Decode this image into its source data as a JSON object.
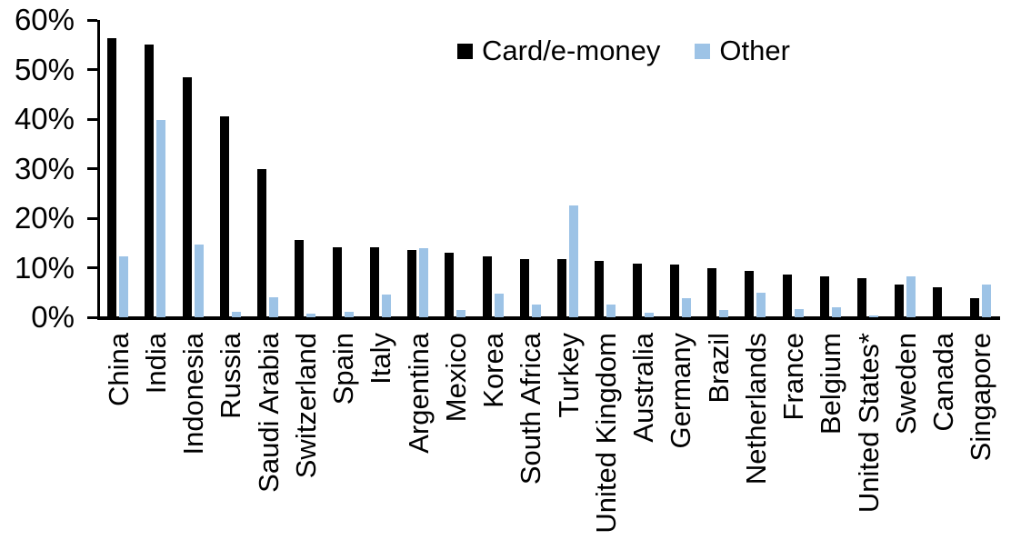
{
  "chart_data": {
    "type": "bar",
    "title": "",
    "xlabel": "",
    "ylabel": "",
    "ylim": [
      0,
      60
    ],
    "grid": false,
    "legend_position": "top",
    "categories": [
      "China",
      "India",
      "Indonesia",
      "Russia",
      "Saudi Arabia",
      "Switzerland",
      "Spain",
      "Italy",
      "Argentina",
      "Mexico",
      "Korea",
      "South Africa",
      "Turkey",
      "United Kingdom",
      "Australia",
      "Germany",
      "Brazil",
      "Netherlands",
      "France",
      "Belgium",
      "United States*",
      "Sweden",
      "Canada",
      "Singapore"
    ],
    "series": [
      {
        "name": "Card/e-money",
        "color": "#000000",
        "values": [
          56.4,
          55.1,
          48.4,
          40.6,
          29.9,
          15.6,
          14.2,
          14.1,
          13.5,
          13.1,
          12.3,
          11.8,
          11.7,
          11.3,
          10.9,
          10.6,
          10.0,
          9.3,
          8.7,
          8.3,
          7.9,
          6.6,
          6.0,
          3.9
        ]
      },
      {
        "name": "Other",
        "color": "#9DC3E6",
        "values": [
          12.3,
          39.8,
          14.6,
          1.1,
          4.0,
          0.8,
          1.1,
          4.6,
          13.9,
          1.5,
          4.7,
          2.5,
          22.6,
          2.5,
          1.0,
          3.9,
          1.4,
          4.9,
          1.6,
          2.1,
          0.4,
          8.3,
          0.0,
          6.7
        ]
      }
    ],
    "yticks": [
      {
        "v": 0,
        "label": "0%"
      },
      {
        "v": 10,
        "label": "10%"
      },
      {
        "v": 20,
        "label": "20%"
      },
      {
        "v": 30,
        "label": "30%"
      },
      {
        "v": 40,
        "label": "40%"
      },
      {
        "v": 50,
        "label": "50%"
      },
      {
        "v": 60,
        "label": "60%"
      }
    ]
  }
}
